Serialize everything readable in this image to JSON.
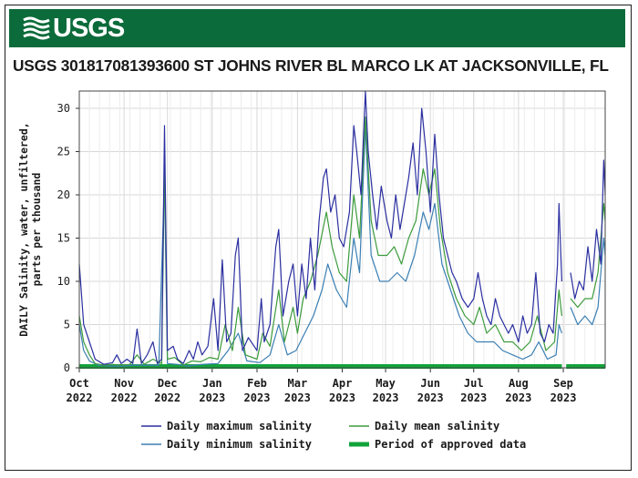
{
  "header": {
    "logo_text": "USGS",
    "title": "USGS 301817081393600 ST JOHNS RIVER BL MARCO LK AT JACKSONVILLE, FL"
  },
  "colors": {
    "banner": "#0b6b3a",
    "max_series": "#2b2fa0",
    "mean_series": "#3c9b3c",
    "min_series": "#3b7fb3",
    "approved": "#12a33a",
    "grid": "#d8d8d8"
  },
  "chart_data": {
    "type": "line",
    "ylabel": "DAILY Salinity, water, unfiltered, parts per thousand",
    "ylim": [
      0,
      32
    ],
    "yticks": [
      0,
      5,
      10,
      15,
      20,
      25,
      30
    ],
    "x_ticks": [
      {
        "date": "2022-10-01",
        "label1": "Oct",
        "label2": "2022"
      },
      {
        "date": "2022-11-01",
        "label1": "Nov",
        "label2": "2022"
      },
      {
        "date": "2022-12-01",
        "label1": "Dec",
        "label2": "2022"
      },
      {
        "date": "2023-01-01",
        "label1": "Jan",
        "label2": "2023"
      },
      {
        "date": "2023-02-01",
        "label1": "Feb",
        "label2": "2023"
      },
      {
        "date": "2023-03-01",
        "label1": "Mar",
        "label2": "2023"
      },
      {
        "date": "2023-04-01",
        "label1": "Apr",
        "label2": "2023"
      },
      {
        "date": "2023-05-01",
        "label1": "May",
        "label2": "2023"
      },
      {
        "date": "2023-06-01",
        "label1": "Jun",
        "label2": "2023"
      },
      {
        "date": "2023-07-01",
        "label1": "Jul",
        "label2": "2023"
      },
      {
        "date": "2023-08-01",
        "label1": "Aug",
        "label2": "2023"
      },
      {
        "date": "2023-09-01",
        "label1": "Sep",
        "label2": "2023"
      }
    ],
    "xlim": [
      "2022-10-01",
      "2023-09-30"
    ],
    "grid": true,
    "legend": {
      "position": "bottom",
      "entries": [
        {
          "key": "max",
          "label": "Daily maximum salinity"
        },
        {
          "key": "mean",
          "label": "Daily mean salinity"
        },
        {
          "key": "min",
          "label": "Daily minimum salinity"
        },
        {
          "key": "approved",
          "label": "Period of approved data"
        }
      ]
    },
    "approved_period": [
      [
        "2022-10-01",
        "2023-08-31"
      ],
      [
        "2023-09-03",
        "2023-09-30"
      ]
    ],
    "series": [
      {
        "key": "max",
        "name": "Daily maximum salinity",
        "points": [
          [
            "2022-10-01",
            12
          ],
          [
            "2022-10-04",
            5
          ],
          [
            "2022-10-08",
            3
          ],
          [
            "2022-10-12",
            1
          ],
          [
            "2022-10-18",
            0.4
          ],
          [
            "2022-10-24",
            0.6
          ],
          [
            "2022-10-27",
            1.5
          ],
          [
            "2022-10-30",
            0.5
          ],
          [
            "2022-11-03",
            1
          ],
          [
            "2022-11-07",
            0.5
          ],
          [
            "2022-11-10",
            4.5
          ],
          [
            "2022-11-13",
            0.5
          ],
          [
            "2022-11-17",
            1.5
          ],
          [
            "2022-11-21",
            3
          ],
          [
            "2022-11-24",
            0.5
          ],
          [
            "2022-11-27",
            1
          ],
          [
            "2022-11-29",
            28
          ],
          [
            "2022-12-01",
            2
          ],
          [
            "2022-12-05",
            2.5
          ],
          [
            "2022-12-08",
            1
          ],
          [
            "2022-12-12",
            0.5
          ],
          [
            "2022-12-16",
            2
          ],
          [
            "2022-12-19",
            1
          ],
          [
            "2022-12-22",
            3
          ],
          [
            "2022-12-25",
            1.5
          ],
          [
            "2022-12-29",
            2.5
          ],
          [
            "2023-01-02",
            8
          ],
          [
            "2023-01-05",
            2
          ],
          [
            "2023-01-08",
            12.5
          ],
          [
            "2023-01-11",
            3
          ],
          [
            "2023-01-14",
            4
          ],
          [
            "2023-01-17",
            13
          ],
          [
            "2023-01-19",
            15
          ],
          [
            "2023-01-22",
            2
          ],
          [
            "2023-01-26",
            3.5
          ],
          [
            "2023-02-01",
            2
          ],
          [
            "2023-02-04",
            8
          ],
          [
            "2023-02-06",
            3
          ],
          [
            "2023-02-10",
            5
          ],
          [
            "2023-02-14",
            14
          ],
          [
            "2023-02-16",
            16
          ],
          [
            "2023-02-19",
            6
          ],
          [
            "2023-02-23",
            10
          ],
          [
            "2023-02-26",
            12
          ],
          [
            "2023-03-01",
            6
          ],
          [
            "2023-03-04",
            12
          ],
          [
            "2023-03-07",
            8
          ],
          [
            "2023-03-10",
            15
          ],
          [
            "2023-03-13",
            9
          ],
          [
            "2023-03-16",
            17
          ],
          [
            "2023-03-19",
            22
          ],
          [
            "2023-03-21",
            23
          ],
          [
            "2023-03-24",
            18
          ],
          [
            "2023-03-27",
            20
          ],
          [
            "2023-03-30",
            15
          ],
          [
            "2023-04-02",
            14
          ],
          [
            "2023-04-06",
            18
          ],
          [
            "2023-04-09",
            28
          ],
          [
            "2023-04-11",
            25
          ],
          [
            "2023-04-14",
            20
          ],
          [
            "2023-04-17",
            32
          ],
          [
            "2023-04-19",
            25
          ],
          [
            "2023-04-22",
            20
          ],
          [
            "2023-04-25",
            16
          ],
          [
            "2023-04-28",
            21
          ],
          [
            "2023-05-02",
            17
          ],
          [
            "2023-05-05",
            15
          ],
          [
            "2023-05-08",
            20
          ],
          [
            "2023-05-11",
            16
          ],
          [
            "2023-05-14",
            19
          ],
          [
            "2023-05-17",
            22
          ],
          [
            "2023-05-20",
            26
          ],
          [
            "2023-05-23",
            20
          ],
          [
            "2023-05-26",
            30
          ],
          [
            "2023-05-29",
            25
          ],
          [
            "2023-06-01",
            18
          ],
          [
            "2023-06-04",
            27
          ],
          [
            "2023-06-07",
            20
          ],
          [
            "2023-06-10",
            15
          ],
          [
            "2023-06-13",
            13
          ],
          [
            "2023-06-16",
            11
          ],
          [
            "2023-06-19",
            10
          ],
          [
            "2023-06-23",
            8
          ],
          [
            "2023-06-27",
            7
          ],
          [
            "2023-07-01",
            8
          ],
          [
            "2023-07-04",
            11
          ],
          [
            "2023-07-07",
            8
          ],
          [
            "2023-07-10",
            6
          ],
          [
            "2023-07-13",
            5
          ],
          [
            "2023-07-16",
            8
          ],
          [
            "2023-07-19",
            6
          ],
          [
            "2023-07-22",
            5
          ],
          [
            "2023-07-25",
            4
          ],
          [
            "2023-07-28",
            5
          ],
          [
            "2023-08-01",
            3
          ],
          [
            "2023-08-04",
            6
          ],
          [
            "2023-08-07",
            4
          ],
          [
            "2023-08-10",
            5
          ],
          [
            "2023-08-13",
            11
          ],
          [
            "2023-08-16",
            4
          ],
          [
            "2023-08-19",
            3
          ],
          [
            "2023-08-22",
            5
          ],
          [
            "2023-08-25",
            4
          ],
          [
            "2023-08-28",
            12
          ],
          [
            "2023-08-29",
            19
          ],
          [
            "2023-08-31",
            10
          ],
          [
            "2023-09-04",
            null
          ],
          [
            "2023-09-06",
            11
          ],
          [
            "2023-09-09",
            8
          ],
          [
            "2023-09-12",
            10
          ],
          [
            "2023-09-15",
            9
          ],
          [
            "2023-09-18",
            14
          ],
          [
            "2023-09-21",
            10
          ],
          [
            "2023-09-24",
            16
          ],
          [
            "2023-09-27",
            12
          ],
          [
            "2023-09-29",
            24
          ],
          [
            "2023-09-30",
            20
          ]
        ]
      },
      {
        "key": "mean",
        "name": "Daily mean salinity",
        "points": [
          [
            "2022-10-01",
            6
          ],
          [
            "2022-10-04",
            3
          ],
          [
            "2022-10-08",
            1.5
          ],
          [
            "2022-10-12",
            0.5
          ],
          [
            "2022-10-18",
            0.3
          ],
          [
            "2022-10-24",
            0.4
          ],
          [
            "2022-10-30",
            0.3
          ],
          [
            "2022-11-05",
            0.4
          ],
          [
            "2022-11-10",
            1.5
          ],
          [
            "2022-11-15",
            0.4
          ],
          [
            "2022-11-21",
            1
          ],
          [
            "2022-11-27",
            0.5
          ],
          [
            "2022-11-29",
            24
          ],
          [
            "2022-12-01",
            1
          ],
          [
            "2022-12-06",
            1.2
          ],
          [
            "2022-12-12",
            0.3
          ],
          [
            "2022-12-18",
            0.8
          ],
          [
            "2022-12-24",
            0.7
          ],
          [
            "2022-12-30",
            1.2
          ],
          [
            "2023-01-05",
            1
          ],
          [
            "2023-01-10",
            5
          ],
          [
            "2023-01-15",
            2
          ],
          [
            "2023-01-19",
            7
          ],
          [
            "2023-01-24",
            1.5
          ],
          [
            "2023-02-01",
            1
          ],
          [
            "2023-02-05",
            4
          ],
          [
            "2023-02-10",
            2.5
          ],
          [
            "2023-02-16",
            9
          ],
          [
            "2023-02-20",
            3
          ],
          [
            "2023-02-26",
            7
          ],
          [
            "2023-03-01",
            4
          ],
          [
            "2023-03-05",
            8
          ],
          [
            "2023-03-10",
            10
          ],
          [
            "2023-03-15",
            13
          ],
          [
            "2023-03-21",
            18
          ],
          [
            "2023-03-25",
            14
          ],
          [
            "2023-03-30",
            11
          ],
          [
            "2023-04-04",
            10
          ],
          [
            "2023-04-09",
            20
          ],
          [
            "2023-04-13",
            15
          ],
          [
            "2023-04-17",
            29
          ],
          [
            "2023-04-21",
            17
          ],
          [
            "2023-04-26",
            13
          ],
          [
            "2023-05-02",
            13
          ],
          [
            "2023-05-07",
            14
          ],
          [
            "2023-05-12",
            12
          ],
          [
            "2023-05-17",
            15
          ],
          [
            "2023-05-22",
            17
          ],
          [
            "2023-05-27",
            23
          ],
          [
            "2023-05-31",
            20
          ],
          [
            "2023-06-04",
            23
          ],
          [
            "2023-06-08",
            16
          ],
          [
            "2023-06-13",
            11
          ],
          [
            "2023-06-19",
            8
          ],
          [
            "2023-06-25",
            6
          ],
          [
            "2023-07-01",
            5
          ],
          [
            "2023-07-05",
            7
          ],
          [
            "2023-07-10",
            4
          ],
          [
            "2023-07-16",
            5
          ],
          [
            "2023-07-22",
            3
          ],
          [
            "2023-07-28",
            3
          ],
          [
            "2023-08-03",
            2
          ],
          [
            "2023-08-09",
            3
          ],
          [
            "2023-08-14",
            6
          ],
          [
            "2023-08-20",
            2
          ],
          [
            "2023-08-26",
            3
          ],
          [
            "2023-08-29",
            9
          ],
          [
            "2023-08-31",
            6
          ],
          [
            "2023-09-04",
            null
          ],
          [
            "2023-09-06",
            8
          ],
          [
            "2023-09-11",
            7
          ],
          [
            "2023-09-16",
            8
          ],
          [
            "2023-09-21",
            8
          ],
          [
            "2023-09-25",
            11
          ],
          [
            "2023-09-29",
            19
          ],
          [
            "2023-09-30",
            17
          ]
        ]
      },
      {
        "key": "min",
        "name": "Daily minimum salinity",
        "points": [
          [
            "2022-10-01",
            5
          ],
          [
            "2022-10-04",
            2
          ],
          [
            "2022-10-08",
            0.8
          ],
          [
            "2022-10-14",
            0.3
          ],
          [
            "2022-10-24",
            0.2
          ],
          [
            "2022-10-30",
            0.2
          ],
          [
            "2022-11-08",
            0.3
          ],
          [
            "2022-11-15",
            0.3
          ],
          [
            "2022-11-25",
            0.3
          ],
          [
            "2022-11-29",
            22
          ],
          [
            "2022-12-01",
            0.5
          ],
          [
            "2022-12-08",
            0.4
          ],
          [
            "2022-12-15",
            0.2
          ],
          [
            "2022-12-25",
            0.4
          ],
          [
            "2023-01-05",
            0.5
          ],
          [
            "2023-01-12",
            2
          ],
          [
            "2023-01-19",
            4
          ],
          [
            "2023-01-25",
            0.8
          ],
          [
            "2023-02-03",
            0.6
          ],
          [
            "2023-02-10",
            1.5
          ],
          [
            "2023-02-16",
            5
          ],
          [
            "2023-02-22",
            1.5
          ],
          [
            "2023-02-28",
            2
          ],
          [
            "2023-03-06",
            4
          ],
          [
            "2023-03-12",
            6
          ],
          [
            "2023-03-18",
            9
          ],
          [
            "2023-03-22",
            12
          ],
          [
            "2023-03-28",
            9
          ],
          [
            "2023-04-04",
            7
          ],
          [
            "2023-04-09",
            15
          ],
          [
            "2023-04-13",
            11
          ],
          [
            "2023-04-17",
            28
          ],
          [
            "2023-04-21",
            13
          ],
          [
            "2023-04-27",
            10
          ],
          [
            "2023-05-03",
            10
          ],
          [
            "2023-05-09",
            11
          ],
          [
            "2023-05-15",
            10
          ],
          [
            "2023-05-21",
            13
          ],
          [
            "2023-05-27",
            18
          ],
          [
            "2023-05-31",
            16
          ],
          [
            "2023-06-04",
            19
          ],
          [
            "2023-06-09",
            12
          ],
          [
            "2023-06-15",
            9
          ],
          [
            "2023-06-21",
            6
          ],
          [
            "2023-06-27",
            4
          ],
          [
            "2023-07-03",
            3
          ],
          [
            "2023-07-09",
            3
          ],
          [
            "2023-07-15",
            3
          ],
          [
            "2023-07-21",
            2
          ],
          [
            "2023-07-28",
            1.5
          ],
          [
            "2023-08-04",
            1
          ],
          [
            "2023-08-10",
            1.5
          ],
          [
            "2023-08-15",
            3
          ],
          [
            "2023-08-21",
            1
          ],
          [
            "2023-08-27",
            1.5
          ],
          [
            "2023-08-29",
            5
          ],
          [
            "2023-08-31",
            4
          ],
          [
            "2023-09-04",
            null
          ],
          [
            "2023-09-06",
            7
          ],
          [
            "2023-09-11",
            5
          ],
          [
            "2023-09-16",
            6
          ],
          [
            "2023-09-21",
            5
          ],
          [
            "2023-09-25",
            7
          ],
          [
            "2023-09-29",
            15
          ],
          [
            "2023-09-30",
            13
          ]
        ]
      }
    ]
  }
}
